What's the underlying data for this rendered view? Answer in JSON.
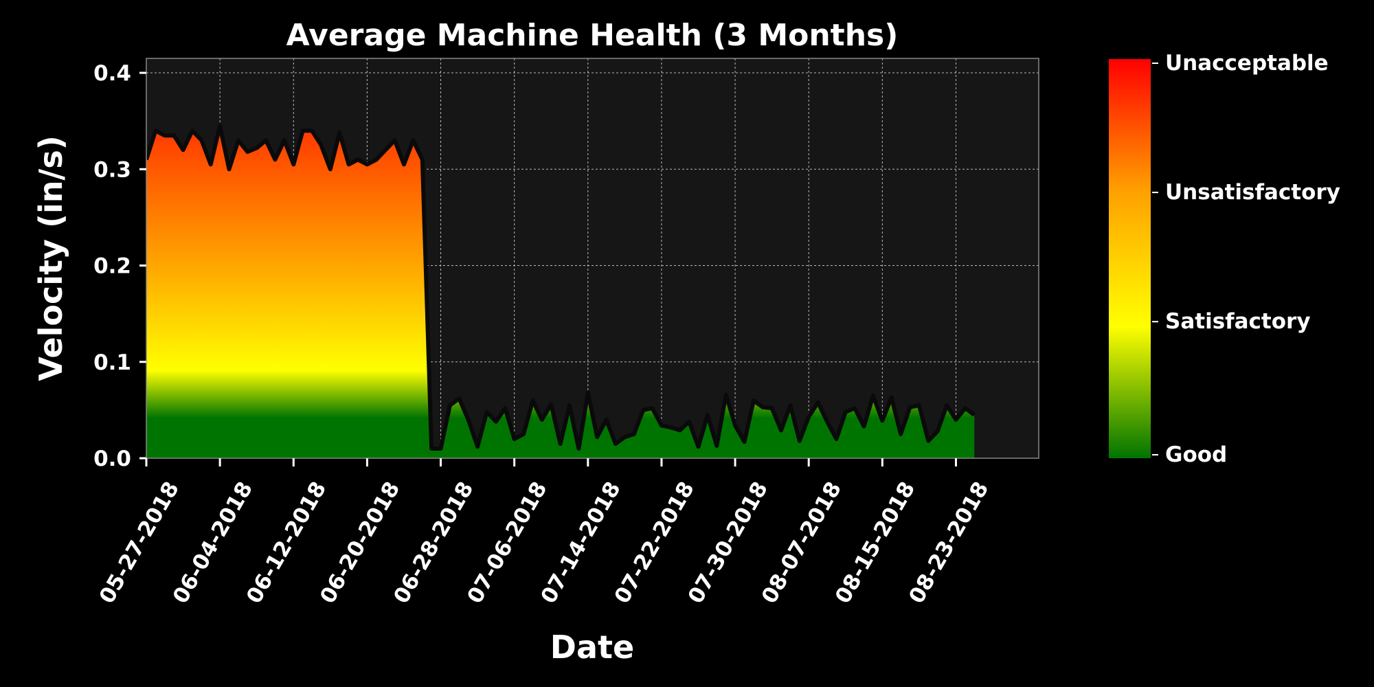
{
  "chart_data": {
    "type": "area",
    "title": "Average Machine Health (3 Months)",
    "xlabel": "Date",
    "ylabel": "Velocity (in/s)",
    "ylim": [
      0,
      0.415
    ],
    "xlim": [
      "2018-05-27",
      "2018-09-01"
    ],
    "yticks": [
      0,
      0.1,
      0.2,
      0.3,
      0.4
    ],
    "ytick_labels": [
      "0.0",
      "0.1",
      "0.2",
      "0.3",
      "0.4"
    ],
    "xticks": [
      "2018-05-27",
      "2018-06-04",
      "2018-06-12",
      "2018-06-20",
      "2018-06-28",
      "2018-07-06",
      "2018-07-14",
      "2018-07-22",
      "2018-07-30",
      "2018-08-07",
      "2018-08-15",
      "2018-08-23"
    ],
    "xtick_labels": [
      "05-27-2018",
      "06-04-2018",
      "06-12-2018",
      "06-20-2018",
      "06-28-2018",
      "07-06-2018",
      "07-14-2018",
      "07-22-2018",
      "07-30-2018",
      "08-07-2018",
      "08-15-2018",
      "08-23-2018"
    ],
    "grid": true,
    "start_date": "2018-05-27",
    "fill_end_date": "2018-08-25",
    "colors": {
      "background": "#000000",
      "plot_background": "#161616",
      "line": "#0a0a0a",
      "grid": "#bbbbbb",
      "good": "#007400",
      "satisfactory": "#ffff00",
      "unsatisfactory": "#ffa000",
      "unacceptable": "#ff0000"
    },
    "colorbar": {
      "labels": [
        "Unacceptable",
        "Unsatisfactory",
        "Satisfactory",
        "Good"
      ],
      "stops": [
        0.0,
        0.33,
        0.66,
        1.0
      ]
    },
    "series": [
      {
        "values": [
          0.31,
          0.34,
          0.335,
          0.335,
          0.32,
          0.34,
          0.33,
          0.305,
          0.345,
          0.3,
          0.33,
          0.318,
          0.322,
          0.33,
          0.31,
          0.33,
          0.305,
          0.34,
          0.34,
          0.325,
          0.3,
          0.338,
          0.305,
          0.31,
          0.305,
          0.31,
          0.32,
          0.33,
          0.305,
          0.33,
          0.31,
          0.01,
          0.01,
          0.055,
          0.062,
          0.04,
          0.012,
          0.048,
          0.038,
          0.052,
          0.02,
          0.025,
          0.06,
          0.04,
          0.056,
          0.015,
          0.055,
          0.01,
          0.068,
          0.022,
          0.04,
          0.015,
          0.022,
          0.025,
          0.05,
          0.052,
          0.034,
          0.032,
          0.029,
          0.038,
          0.012,
          0.045,
          0.013,
          0.066,
          0.034,
          0.017,
          0.06,
          0.053,
          0.052,
          0.029,
          0.055,
          0.018,
          0.043,
          0.058,
          0.038,
          0.02,
          0.048,
          0.052,
          0.033,
          0.065,
          0.039,
          0.063,
          0.025,
          0.053,
          0.055,
          0.018,
          0.028,
          0.055,
          0.04,
          0.052,
          0.045
        ]
      }
    ]
  }
}
